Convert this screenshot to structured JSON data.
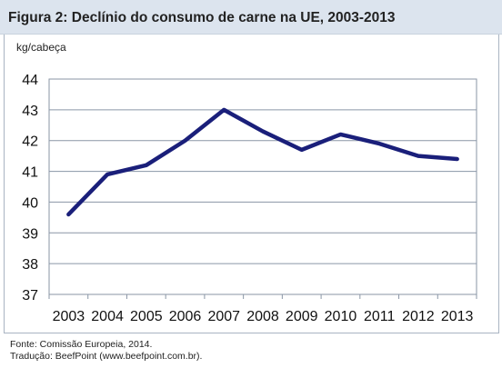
{
  "header": {
    "title": "Figura 2: Declínio do consumo de carne na UE, 2003-2013"
  },
  "chart_data": {
    "type": "line",
    "title": "",
    "xlabel": "",
    "ylabel": "kg/cabeça",
    "ylim": [
      37,
      44
    ],
    "y_ticks": [
      "37",
      "38",
      "39",
      "40",
      "41",
      "42",
      "43",
      "44"
    ],
    "categories": [
      "2003",
      "2004",
      "2005",
      "2006",
      "2007",
      "2008",
      "2009",
      "2010",
      "2011",
      "2012",
      "2013"
    ],
    "series": [
      {
        "values": [
          39.6,
          40.9,
          41.2,
          42.0,
          43.0,
          42.3,
          41.7,
          42.2,
          41.9,
          41.5,
          41.4
        ],
        "color": "#1a1f7a"
      }
    ],
    "grid": true,
    "legend": "none",
    "colors": {
      "plot_border": "#8a96a6",
      "gridline": "#8a96a6"
    }
  },
  "footer": {
    "source": "Fonte: Comissão Europeia, 2014.",
    "translation": "Tradução: BeefPoint (www.beefpoint.com.br)."
  }
}
